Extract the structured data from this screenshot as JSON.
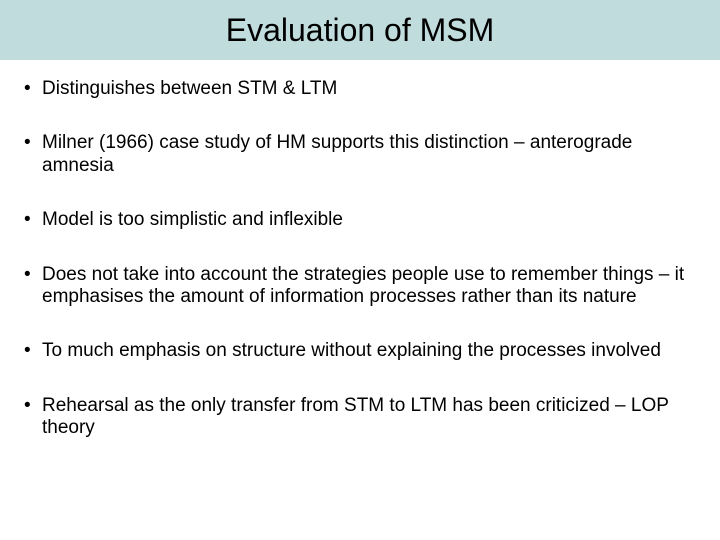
{
  "slide": {
    "title": "Evaluation of MSM",
    "title_band_color": "#c1dcdc",
    "title_fontsize": 32,
    "background_color": "#ffffff",
    "text_color": "#000000",
    "bullet_fontsize": 19,
    "bullets": [
      "Distinguishes between STM & LTM",
      "Milner (1966) case study of HM supports this distinction – anterograde amnesia",
      "Model is too simplistic and inflexible",
      "Does not take into account the strategies people use to remember things – it emphasises the amount of information processes rather than its nature",
      "To much emphasis on structure without explaining the processes involved",
      "Rehearsal as the only transfer from STM to LTM has been criticized – LOP theory"
    ]
  }
}
